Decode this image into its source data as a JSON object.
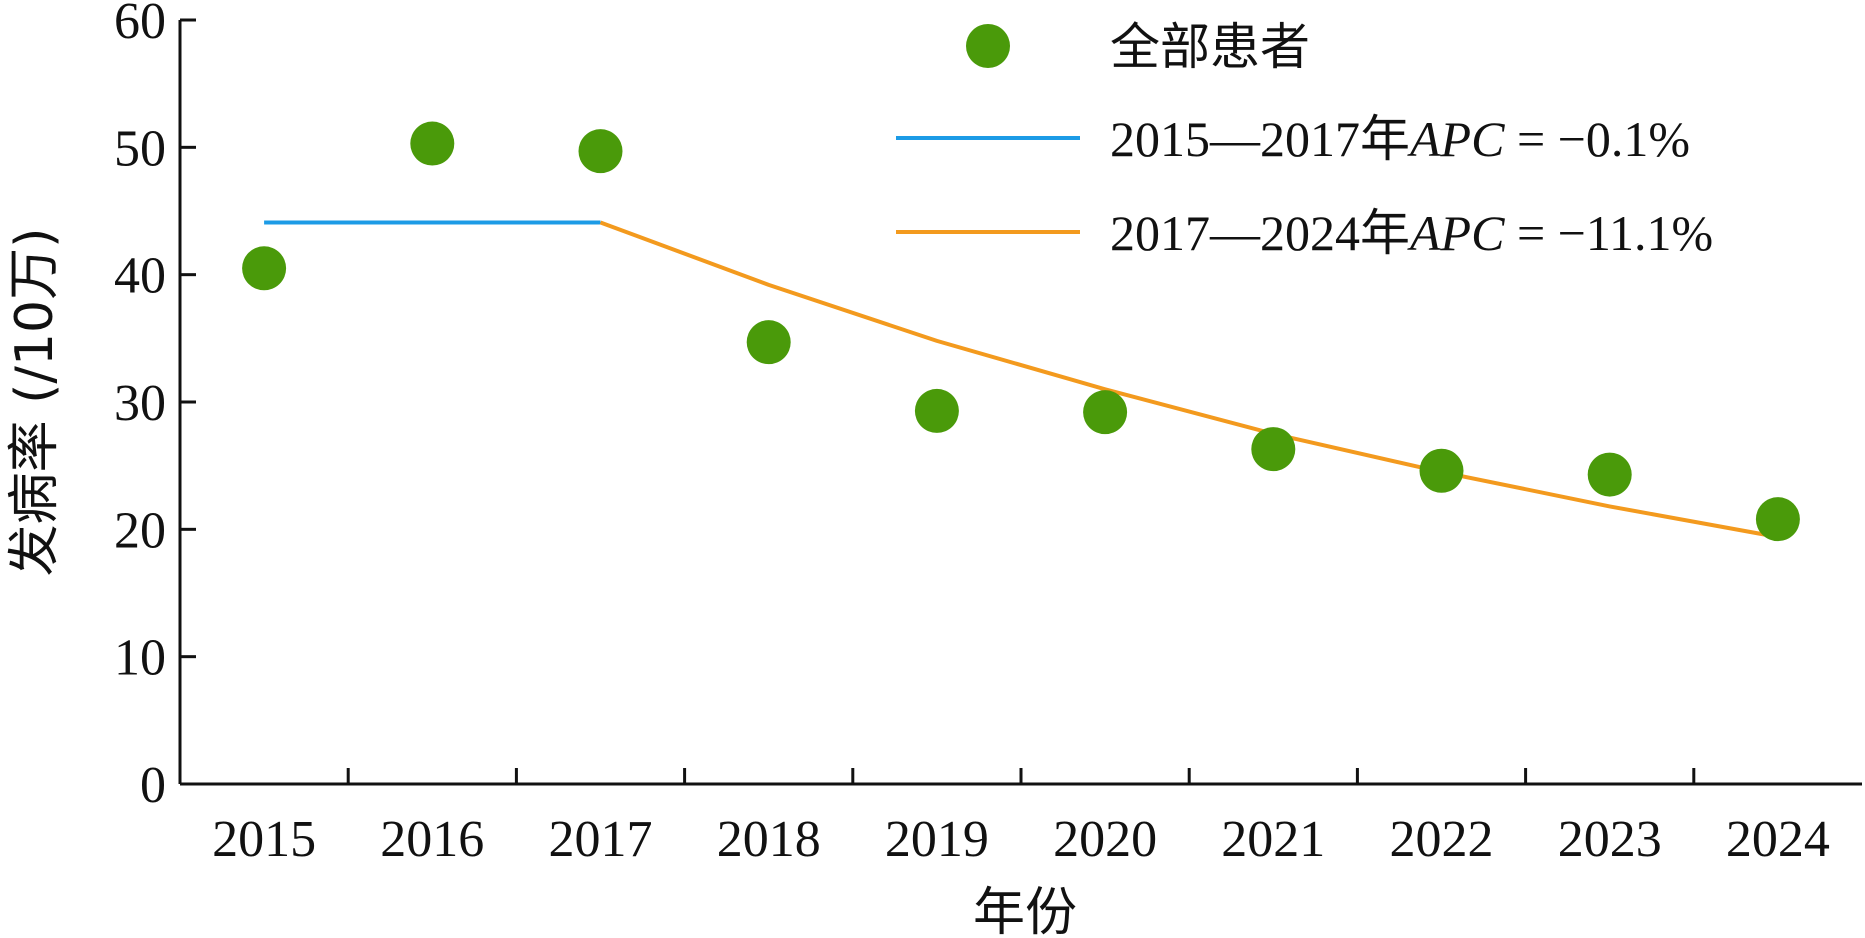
{
  "chart_data": {
    "type": "scatter",
    "categories": [
      "2015",
      "2016",
      "2017",
      "2018",
      "2019",
      "2020",
      "2021",
      "2022",
      "2023",
      "2024"
    ],
    "xlabel": "年份",
    "ylabel": "发病率 (/10万)",
    "ylim": [
      0,
      60
    ],
    "yticks": [
      0,
      10,
      20,
      30,
      40,
      50,
      60
    ],
    "grid": false,
    "legend_position": "top-right",
    "series": [
      {
        "name": "全部患者",
        "kind": "points",
        "color": "#4a9a0a",
        "x": [
          "2015",
          "2016",
          "2017",
          "2018",
          "2019",
          "2020",
          "2021",
          "2022",
          "2023",
          "2024"
        ],
        "values": [
          40.5,
          50.3,
          49.7,
          34.7,
          29.3,
          29.2,
          26.3,
          24.6,
          24.3,
          20.8
        ]
      },
      {
        "name": "2015—2017年APC = −0.1%",
        "label_prefix": "2015—2017年",
        "label_italic": "APC",
        "label_suffix": " = −0.1%",
        "kind": "line",
        "color": "#1c9be6",
        "x": [
          "2015",
          "2017"
        ],
        "values": [
          44.1,
          44.1
        ]
      },
      {
        "name": "2017—2024年APC = −11.1%",
        "label_prefix": "2017—2024年",
        "label_italic": "APC",
        "label_suffix": " = −11.1%",
        "kind": "line",
        "color": "#f39a1e",
        "x": [
          "2017",
          "2018",
          "2019",
          "2020",
          "2021",
          "2022",
          "2023",
          "2024"
        ],
        "values": [
          44.1,
          39.2,
          34.8,
          31.0,
          27.5,
          24.5,
          21.8,
          19.4
        ]
      }
    ]
  }
}
